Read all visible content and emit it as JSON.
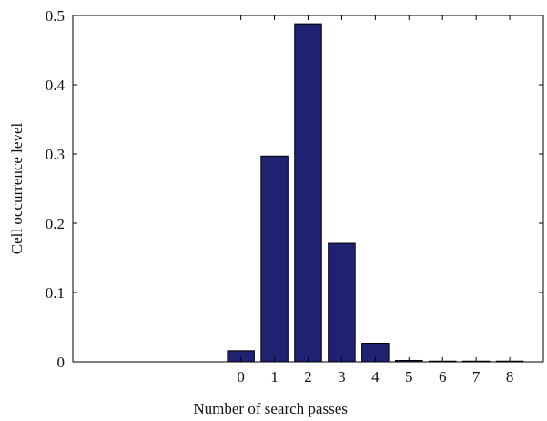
{
  "chart_data": {
    "type": "bar",
    "categories": [
      "0",
      "1",
      "2",
      "3",
      "4",
      "5",
      "6",
      "7",
      "8"
    ],
    "values": [
      0.016,
      0.297,
      0.488,
      0.171,
      0.027,
      0.002,
      0.001,
      0.001,
      0.001
    ],
    "title": "",
    "xlabel": "Number of search passes",
    "ylabel": "Cell occurrence level",
    "ylim": [
      0,
      0.5
    ],
    "xlim": [
      -5,
      9
    ],
    "yticks": [
      "0",
      "0.1",
      "0.2",
      "0.3",
      "0.4",
      "0.5"
    ],
    "grid": false,
    "bar_color": "#1f2270",
    "bar_edge_color": "#000000"
  }
}
